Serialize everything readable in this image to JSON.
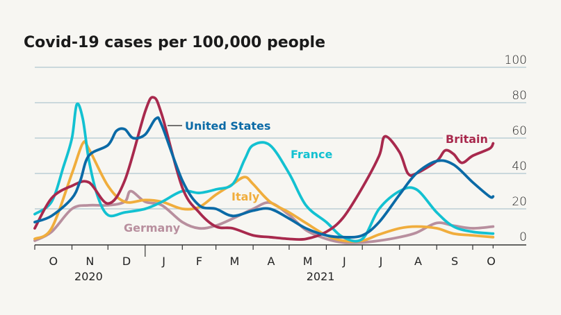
{
  "chart_data": {
    "type": "line",
    "title": "Covid-19 cases per 100,000 people",
    "xlabel": "",
    "ylabel": "",
    "ylim": [
      0,
      100
    ],
    "yticks": [
      0,
      20,
      40,
      60,
      80,
      100
    ],
    "xlim": [
      "2020-10-01",
      "2021-10-18"
    ],
    "month_ticks": [
      "O",
      "N",
      "D",
      "J",
      "F",
      "M",
      "A",
      "M",
      "J",
      "J",
      "A",
      "S",
      "O"
    ],
    "year_labels": [
      "2020",
      "2021"
    ],
    "grid": true,
    "series": [
      {
        "name": "Britain",
        "color": "#a8294d",
        "x": [
          "2020-10-01",
          "2020-10-15",
          "2020-11-01",
          "2020-11-15",
          "2020-12-01",
          "2020-12-15",
          "2021-01-01",
          "2021-01-08",
          "2021-01-15",
          "2021-02-01",
          "2021-02-15",
          "2021-03-01",
          "2021-03-15",
          "2021-04-01",
          "2021-04-15",
          "2021-05-01",
          "2021-05-15",
          "2021-06-01",
          "2021-06-15",
          "2021-07-01",
          "2021-07-15",
          "2021-07-20",
          "2021-08-01",
          "2021-08-08",
          "2021-08-15",
          "2021-09-01",
          "2021-09-08",
          "2021-09-15",
          "2021-09-22",
          "2021-10-01",
          "2021-10-15",
          "2021-10-18"
        ],
        "y": [
          9,
          26,
          33,
          35,
          23,
          36,
          75,
          83,
          73,
          32,
          18,
          10,
          9,
          5,
          4,
          3,
          3,
          7,
          15,
          32,
          50,
          61,
          52,
          40,
          40,
          47,
          53,
          51,
          46,
          50,
          54,
          57
        ]
      },
      {
        "name": "United States",
        "color": "#0b6aa6",
        "x": [
          "2020-10-01",
          "2020-10-15",
          "2020-11-01",
          "2020-11-08",
          "2020-11-15",
          "2020-12-01",
          "2020-12-08",
          "2020-12-15",
          "2020-12-22",
          "2021-01-01",
          "2021-01-10",
          "2021-01-15",
          "2021-02-01",
          "2021-02-15",
          "2021-03-01",
          "2021-03-15",
          "2021-04-01",
          "2021-04-15",
          "2021-05-01",
          "2021-05-15",
          "2021-06-01",
          "2021-06-15",
          "2021-07-01",
          "2021-07-15",
          "2021-08-01",
          "2021-08-15",
          "2021-09-01",
          "2021-09-15",
          "2021-10-01",
          "2021-10-15",
          "2021-10-18"
        ],
        "y": [
          12.5,
          16,
          26,
          36,
          50,
          56,
          64,
          65,
          60,
          62,
          71,
          67,
          36,
          22,
          20,
          16,
          19,
          20,
          14.5,
          9,
          5,
          4,
          5,
          12.5,
          28,
          40,
          47,
          45,
          35,
          27,
          27
        ]
      },
      {
        "name": "France",
        "color": "#13c1d1",
        "x": [
          "2020-10-01",
          "2020-10-15",
          "2020-10-25",
          "2020-11-01",
          "2020-11-05",
          "2020-11-10",
          "2020-11-15",
          "2020-11-22",
          "2020-12-01",
          "2020-12-15",
          "2021-01-01",
          "2021-01-15",
          "2021-02-01",
          "2021-02-15",
          "2021-03-01",
          "2021-03-15",
          "2021-03-25",
          "2021-04-01",
          "2021-04-15",
          "2021-05-01",
          "2021-05-15",
          "2021-06-01",
          "2021-06-15",
          "2021-07-01",
          "2021-07-15",
          "2021-08-01",
          "2021-08-15",
          "2021-09-01",
          "2021-09-15",
          "2021-10-01",
          "2021-10-18"
        ],
        "y": [
          17,
          24,
          44,
          60,
          79,
          71,
          48,
          28,
          16.5,
          18,
          20,
          24,
          30,
          29,
          31,
          34,
          48,
          56,
          56,
          40,
          22,
          12.5,
          4,
          3,
          20,
          30,
          31,
          18,
          10,
          7,
          6
        ]
      },
      {
        "name": "Italy",
        "color": "#f0ad3c",
        "x": [
          "2020-10-01",
          "2020-10-15",
          "2020-11-01",
          "2020-11-10",
          "2020-11-15",
          "2020-12-01",
          "2020-12-15",
          "2021-01-01",
          "2021-01-15",
          "2021-02-01",
          "2021-02-15",
          "2021-03-01",
          "2021-03-15",
          "2021-03-25",
          "2021-04-01",
          "2021-04-15",
          "2021-05-01",
          "2021-05-15",
          "2021-06-01",
          "2021-06-15",
          "2021-07-01",
          "2021-07-15",
          "2021-08-01",
          "2021-08-15",
          "2021-09-01",
          "2021-09-15",
          "2021-10-01",
          "2021-10-18"
        ],
        "y": [
          3,
          9,
          40,
          57,
          54,
          33,
          24,
          25,
          24,
          20,
          21,
          28,
          34,
          38,
          34,
          24,
          18,
          12,
          5,
          2,
          2,
          5.5,
          9,
          10,
          9,
          6,
          5,
          4
        ]
      },
      {
        "name": "Germany",
        "color": "#b88f9e",
        "x": [
          "2020-10-01",
          "2020-10-15",
          "2020-11-01",
          "2020-11-15",
          "2020-12-01",
          "2020-12-15",
          "2020-12-20",
          "2021-01-01",
          "2021-01-15",
          "2021-02-01",
          "2021-02-15",
          "2021-03-01",
          "2021-03-15",
          "2021-04-01",
          "2021-04-15",
          "2021-05-01",
          "2021-05-15",
          "2021-06-01",
          "2021-06-15",
          "2021-07-01",
          "2021-07-15",
          "2021-08-01",
          "2021-08-15",
          "2021-09-01",
          "2021-09-15",
          "2021-10-01",
          "2021-10-18"
        ],
        "y": [
          2,
          7,
          20,
          22,
          22,
          24,
          30,
          24,
          22,
          12.5,
          9,
          10.5,
          14.5,
          20,
          23.5,
          16.5,
          8,
          3,
          1,
          1,
          2,
          4,
          6.5,
          12,
          10.5,
          9,
          10
        ]
      }
    ]
  }
}
